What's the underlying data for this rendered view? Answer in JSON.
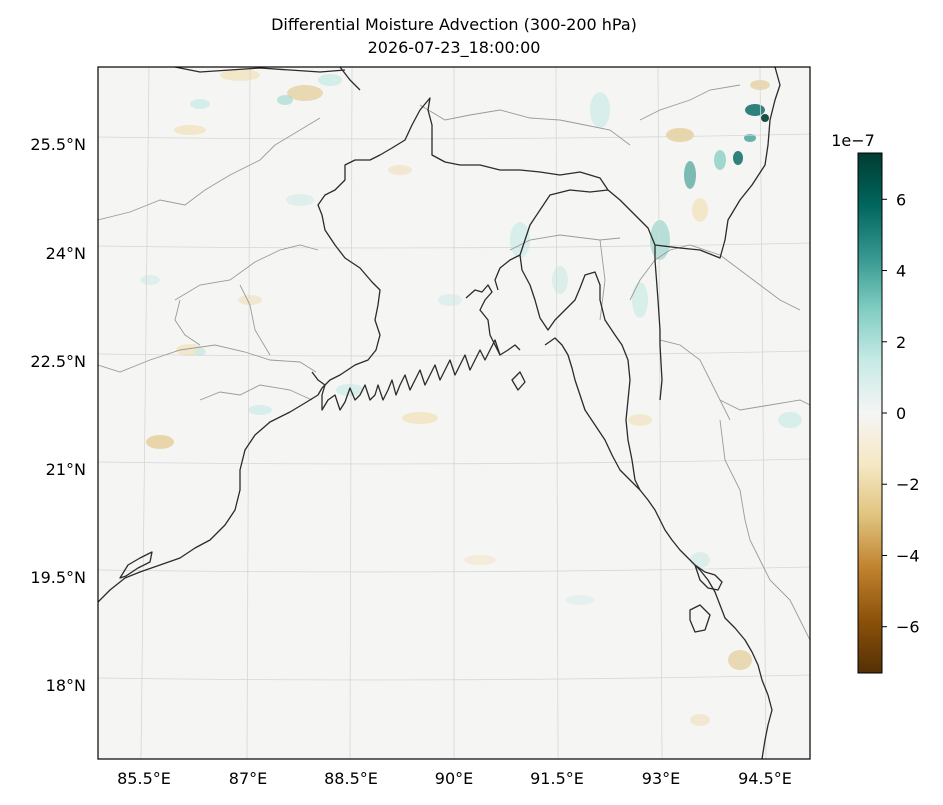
{
  "figure": {
    "title_line1": "Differential Moisture Advection (300-200 hPa)",
    "title_line2": "2026-07-23_18:00:00"
  },
  "map": {
    "lat_labels": [
      "25.5°N",
      "24°N",
      "22.5°N",
      "21°N",
      "19.5°N",
      "18°N"
    ],
    "lon_labels": [
      "85.5°E",
      "87°E",
      "88.5°E",
      "90°E",
      "91.5°E",
      "93°E",
      "94.5°E"
    ],
    "colors": {
      "background_field": "#f5f5f3",
      "coastline": "#2b2b2b",
      "borders": "#9a9a9a",
      "gridlines": "#d6d6d6"
    }
  },
  "colorbar": {
    "multiplier": "1e−7",
    "colormap": "BrBG",
    "ticks": [
      "6",
      "4",
      "2",
      "0",
      "−2",
      "−4",
      "−6"
    ],
    "tick_values": [
      6,
      4,
      2,
      0,
      -2,
      -4,
      -6
    ],
    "range": [
      -7.3,
      7.3
    ]
  }
}
